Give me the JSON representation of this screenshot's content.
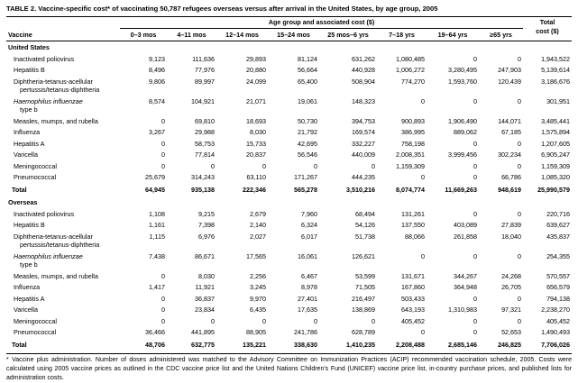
{
  "table": {
    "title": "TABLE 2. Vaccine-specific cost* of vaccinating 50,787 refugees overseas versus after arrival in the United States, by age group, 2005",
    "age_group_label": "Age group and associated cost ($)",
    "columns": {
      "vaccine": "Vaccine",
      "age_groups": [
        "0–3 mos",
        "4–11 mos",
        "12–14 mos",
        "15–24 mos",
        "25 mos–6 yrs",
        "7–18 yrs",
        "19–64 yrs",
        "≥65 yrs"
      ],
      "total_lines": [
        "Total",
        "cost ($)"
      ]
    },
    "sections": [
      {
        "header": "United States",
        "rows": [
          {
            "label_lines": [
              {
                "text": "Inactivated poliovirus",
                "italic": false
              }
            ],
            "values": [
              "9,123",
              "111,636",
              "29,893",
              "81,124",
              "631,262",
              "1,080,485",
              "0",
              "0",
              "1,943,522"
            ]
          },
          {
            "label_lines": [
              {
                "text": "Hepatitis B",
                "italic": false
              }
            ],
            "values": [
              "8,496",
              "77,976",
              "20,880",
              "56,664",
              "440,928",
              "1,006,272",
              "3,280,495",
              "247,903",
              "5,139,614"
            ]
          },
          {
            "label_lines": [
              {
                "text": "Diphtheria-tetanus-acellular",
                "italic": false
              },
              {
                "text": "pertussis/tetanus-diphtheria",
                "italic": false
              }
            ],
            "values": [
              "9,806",
              "89,997",
              "24,099",
              "65,400",
              "508,904",
              "774,270",
              "1,593,760",
              "120,439",
              "3,186,676"
            ]
          },
          {
            "label_lines": [
              {
                "text": "Haemophilus influenzae",
                "italic": true
              },
              {
                "text": "type b",
                "italic": false
              }
            ],
            "values": [
              "8,574",
              "104,921",
              "21,071",
              "19,061",
              "148,323",
              "0",
              "0",
              "0",
              "301,951"
            ]
          },
          {
            "label_lines": [
              {
                "text": "Measles, mumps, and rubella",
                "italic": false
              }
            ],
            "values": [
              "0",
              "69,810",
              "18,693",
              "50,730",
              "394,753",
              "900,893",
              "1,906,490",
              "144,071",
              "3,485,441"
            ]
          },
          {
            "label_lines": [
              {
                "text": "Influenza",
                "italic": false
              }
            ],
            "values": [
              "3,267",
              "29,988",
              "8,030",
              "21,792",
              "169,574",
              "386,995",
              "889,062",
              "67,185",
              "1,575,894"
            ]
          },
          {
            "label_lines": [
              {
                "text": "Hepatitis A",
                "italic": false
              }
            ],
            "values": [
              "0",
              "58,753",
              "15,733",
              "42,695",
              "332,227",
              "758,198",
              "0",
              "0",
              "1,207,605"
            ]
          },
          {
            "label_lines": [
              {
                "text": "Varicella",
                "italic": false
              }
            ],
            "values": [
              "0",
              "77,814",
              "20,837",
              "56,546",
              "440,009",
              "2,008,351",
              "3,999,456",
              "302,234",
              "6,905,247"
            ]
          },
          {
            "label_lines": [
              {
                "text": "Meningococcal",
                "italic": false
              }
            ],
            "values": [
              "0",
              "0",
              "0",
              "0",
              "0",
              "1,159,309",
              "0",
              "0",
              "1,159,309"
            ]
          },
          {
            "label_lines": [
              {
                "text": "Pneumococcal",
                "italic": false
              }
            ],
            "values": [
              "25,679",
              "314,243",
              "63,110",
              "171,267",
              "444,235",
              "0",
              "0",
              "66,786",
              "1,085,320"
            ]
          }
        ],
        "total_label": "Total",
        "total_values": [
          "64,945",
          "935,138",
          "222,346",
          "565,278",
          "3,510,216",
          "8,074,774",
          "11,669,263",
          "948,619",
          "25,990,579"
        ]
      },
      {
        "header": "Overseas",
        "rows": [
          {
            "label_lines": [
              {
                "text": "Inactivated poliovirus",
                "italic": false
              }
            ],
            "values": [
              "1,108",
              "9,215",
              "2,679",
              "7,960",
              "68,494",
              "131,261",
              "0",
              "0",
              "220,716"
            ]
          },
          {
            "label_lines": [
              {
                "text": "Hepatitis B",
                "italic": false
              }
            ],
            "values": [
              "1,161",
              "7,398",
              "2,140",
              "6,324",
              "54,126",
              "137,550",
              "403,089",
              "27,839",
              "639,627"
            ]
          },
          {
            "label_lines": [
              {
                "text": "Diphtheria-tetanus-acellular",
                "italic": false
              },
              {
                "text": "pertussis/tetanus-diphtheria",
                "italic": false
              }
            ],
            "values": [
              "1,115",
              "6,976",
              "2,027",
              "6,017",
              "51,738",
              "88,066",
              "261,858",
              "18,040",
              "435,837"
            ]
          },
          {
            "label_lines": [
              {
                "text": "Haemophilus influenzae",
                "italic": true
              },
              {
                "text": "type b",
                "italic": false
              }
            ],
            "values": [
              "7,438",
              "86,671",
              "17,565",
              "16,061",
              "126,621",
              "0",
              "0",
              "0",
              "254,355"
            ]
          },
          {
            "label_lines": [
              {
                "text": "Measles, mumps, and rubella",
                "italic": false
              }
            ],
            "values": [
              "0",
              "8,030",
              "2,256",
              "6,467",
              "53,599",
              "131,671",
              "344,267",
              "24,268",
              "570,557"
            ]
          },
          {
            "label_lines": [
              {
                "text": "Influenza",
                "italic": false
              }
            ],
            "values": [
              "1,417",
              "11,921",
              "3,245",
              "8,978",
              "71,505",
              "167,860",
              "364,948",
              "26,705",
              "656,579"
            ]
          },
          {
            "label_lines": [
              {
                "text": "Hepatitis A",
                "italic": false
              }
            ],
            "values": [
              "0",
              "36,837",
              "9,970",
              "27,401",
              "216,497",
              "503,433",
              "0",
              "0",
              "794,138"
            ]
          },
          {
            "label_lines": [
              {
                "text": "Varicella",
                "italic": false
              }
            ],
            "values": [
              "0",
              "23,834",
              "6,435",
              "17,635",
              "138,869",
              "643,193",
              "1,310,983",
              "97,321",
              "2,238,270"
            ]
          },
          {
            "label_lines": [
              {
                "text": "Meningococcal",
                "italic": false
              }
            ],
            "values": [
              "0",
              "0",
              "0",
              "0",
              "0",
              "405,452",
              "0",
              "0",
              "405,452"
            ]
          },
          {
            "label_lines": [
              {
                "text": "Pneumococcal",
                "italic": false
              }
            ],
            "values": [
              "36,466",
              "441,895",
              "88,905",
              "241,786",
              "628,789",
              "0",
              "0",
              "52,653",
              "1,490,493"
            ]
          }
        ],
        "total_label": "Total",
        "total_values": [
          "48,706",
          "632,775",
          "135,221",
          "338,630",
          "1,410,235",
          "2,208,488",
          "2,685,146",
          "246,825",
          "7,706,026"
        ]
      }
    ],
    "footnote": "* Vaccine plus administration. Number of doses administered was matched to the Advisory Committee on Immunization Practices (ACIP) recommended vaccination schedule, 2005. Costs were calculated using 2005 vaccine prices as outlined in the CDC vaccine price list and the United Nations Children's Fund (UNICEF) vaccine price list, in-country purchase prices, and published lists for administration costs."
  }
}
